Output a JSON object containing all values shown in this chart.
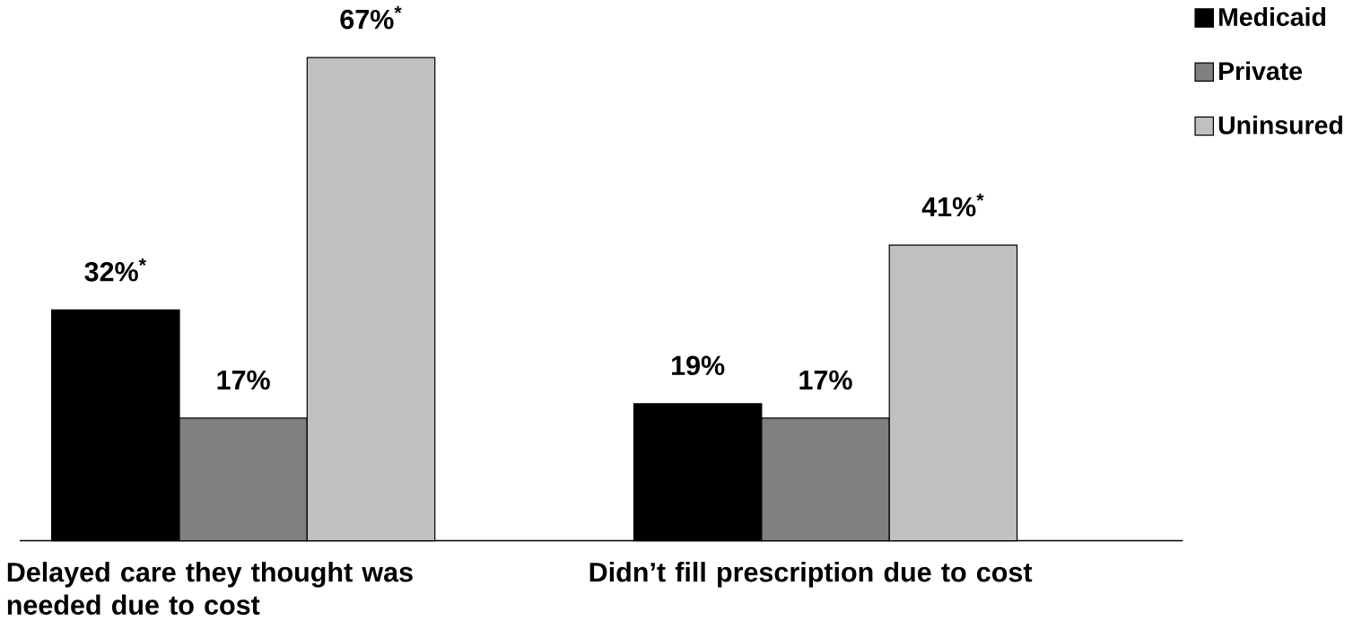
{
  "chart_data": {
    "type": "bar",
    "categories": [
      "Delayed care they thought was needed due to cost",
      "Didn’t fill prescription due to cost"
    ],
    "series": [
      {
        "name": "Medicaid",
        "color": "#000000",
        "values": [
          32,
          19
        ],
        "value_labels": [
          "32%$^{*}$",
          "19%"
        ]
      },
      {
        "name": "Private",
        "color": "#808080",
        "values": [
          17,
          17
        ],
        "value_labels": [
          "17%",
          "17%"
        ]
      },
      {
        "name": "Uninsured",
        "color": "#c0c0c0",
        "values": [
          67,
          41
        ],
        "value_labels": [
          "67%$^{*}$",
          "41%$^{*}$"
        ]
      }
    ],
    "legend": "top right",
    "grid": false
  }
}
